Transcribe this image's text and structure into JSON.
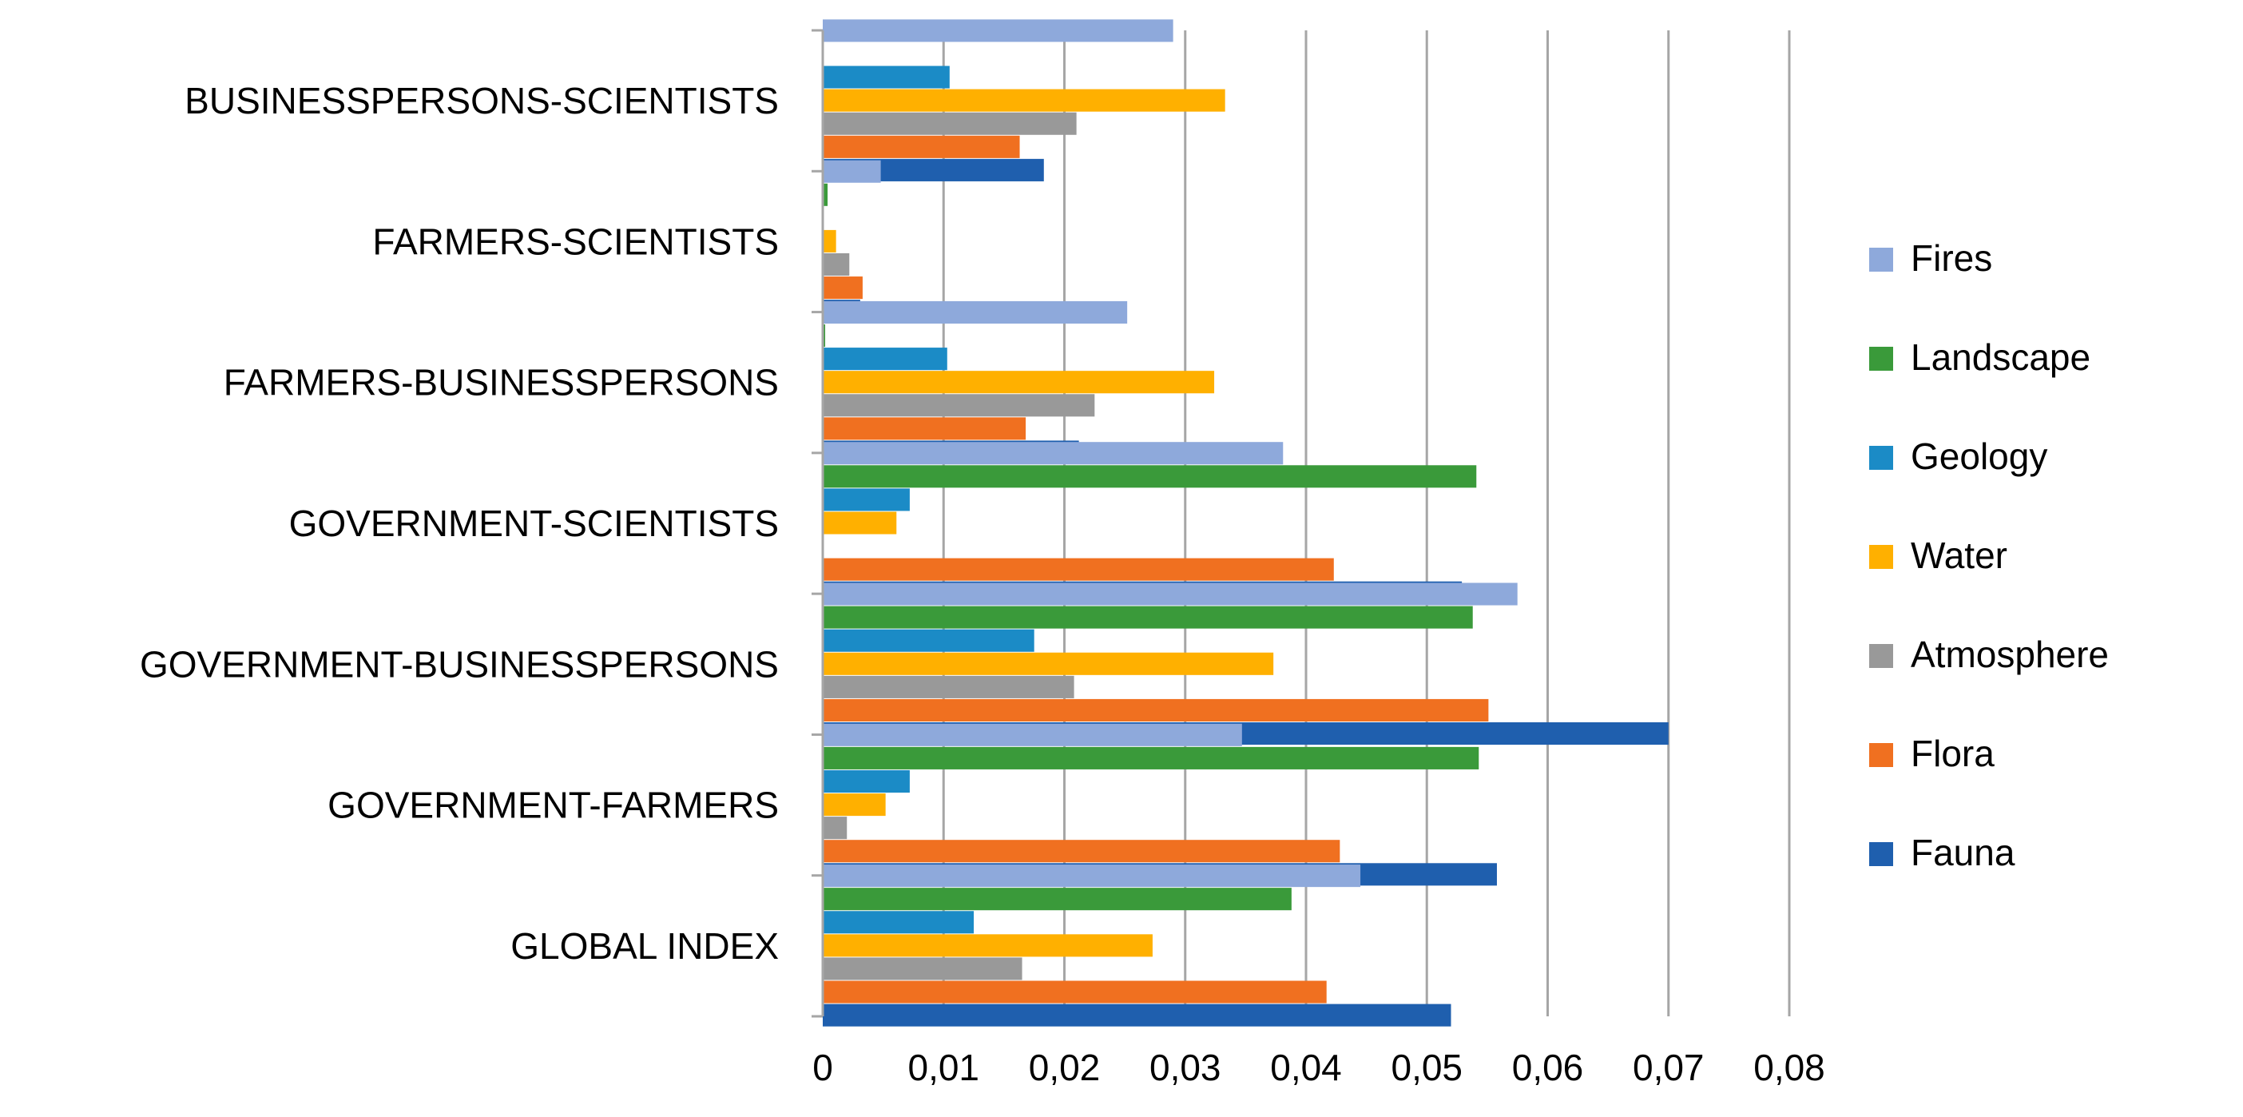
{
  "chart_data": {
    "type": "bar",
    "orientation": "horizontal",
    "title": "",
    "xlabel": "",
    "ylabel": "",
    "xlim": [
      0,
      0.08
    ],
    "x_ticks": [
      0,
      0.01,
      0.02,
      0.03,
      0.04,
      0.05,
      0.06,
      0.07,
      0.08
    ],
    "x_tick_labels": [
      "0",
      "0,01",
      "0,02",
      "0,03",
      "0,04",
      "0,05",
      "0,06",
      "0,07",
      "0,08"
    ],
    "grid": "vertical",
    "legend_position": "right",
    "categories": [
      "BUSINESSPERSONS-SCIENTISTS",
      "FARMERS-SCIENTISTS",
      "FARMERS-BUSINESSPERSONS",
      "GOVERNMENT-SCIENTISTS",
      "GOVERNMENT-BUSINESSPERSONS",
      "GOVERNMENT-FARMERS",
      "GLOBAL INDEX"
    ],
    "series": [
      {
        "name": "Fires",
        "color": "#8EA9DB",
        "values": [
          0.029,
          0.0048,
          0.0252,
          0.0381,
          0.0575,
          0.0347,
          0.0445
        ]
      },
      {
        "name": "Landscape",
        "color": "#3A9A3A",
        "values": [
          0.0,
          0.0004,
          0.0002,
          0.0541,
          0.0538,
          0.0543,
          0.0388
        ]
      },
      {
        "name": "Geology",
        "color": "#1B8BC6",
        "values": [
          0.0105,
          0.0,
          0.0103,
          0.0072,
          0.0175,
          0.0072,
          0.0125
        ]
      },
      {
        "name": "Water",
        "color": "#FFB000",
        "values": [
          0.0333,
          0.0011,
          0.0324,
          0.0061,
          0.0373,
          0.0052,
          0.0273
        ]
      },
      {
        "name": "Atmosphere",
        "color": "#999999",
        "values": [
          0.021,
          0.0022,
          0.0225,
          0.0,
          0.0208,
          0.002,
          0.0165
        ]
      },
      {
        "name": "Flora",
        "color": "#F07020",
        "values": [
          0.0163,
          0.0033,
          0.0168,
          0.0423,
          0.0551,
          0.0428,
          0.0417
        ]
      },
      {
        "name": "Fauna",
        "color": "#1F5FAE",
        "values": [
          0.0183,
          0.0031,
          0.0212,
          0.0529,
          0.07,
          0.0558,
          0.052
        ]
      }
    ]
  }
}
